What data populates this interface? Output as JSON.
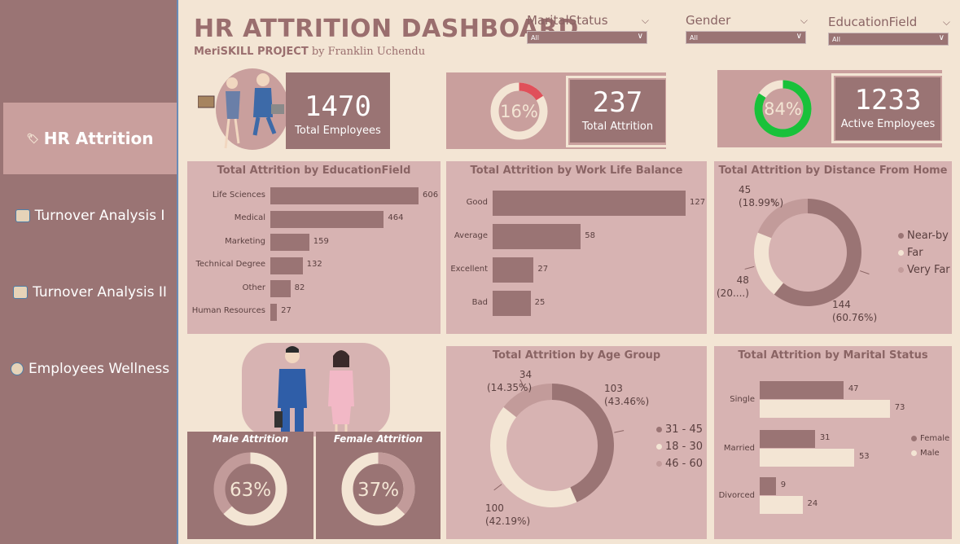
{
  "sidebar": {
    "items": [
      {
        "label": "HR Attrition",
        "icon": "tag-icon",
        "active": true
      },
      {
        "label": "Turnover Analysis I",
        "icon": "people-icon",
        "active": false
      },
      {
        "label": "Turnover Analysis II",
        "icon": "people-icon",
        "active": false
      },
      {
        "label": "Employees Wellness",
        "icon": "person-icon",
        "active": false
      }
    ]
  },
  "header": {
    "title": "HR ATTRITION DASHBOARD",
    "project": "MeriSKILL PROJECT",
    "author": "by Franklin Uchendu"
  },
  "filters": [
    {
      "label": "MaritalStatus",
      "value": "All"
    },
    {
      "label": "Gender",
      "value": "All"
    },
    {
      "label": "EducationField",
      "value": "All"
    }
  ],
  "kpis": {
    "total_employees": {
      "value": "1470",
      "label": "Total Employees"
    },
    "total_attrition": {
      "value": "237",
      "label": "Total Attrition",
      "pct": "16%",
      "fraction": 0.16
    },
    "active_employees": {
      "value": "1233",
      "label": "Active Employees",
      "pct": "84%",
      "fraction": 0.84
    }
  },
  "gender_attrition": {
    "male": {
      "label": "Male Attrition",
      "pct": "63%",
      "fraction": 0.63
    },
    "female": {
      "label": "Female Attrition",
      "pct": "37%",
      "fraction": 0.37
    }
  },
  "colors": {
    "primary": "#9a7474",
    "light": "#f3e5d4",
    "panel": "#d7b3b2",
    "accent_red": "#e0505a",
    "accent_green": "#19c13a",
    "mid": "#c29b9a"
  },
  "chart_data": [
    {
      "id": "education",
      "type": "bar",
      "title": "Total Attrition by EducationField",
      "orientation": "horizontal",
      "categories": [
        "Life Sciences",
        "Medical",
        "Marketing",
        "Technical Degree",
        "Other",
        "Human Resources"
      ],
      "values": [
        606,
        464,
        159,
        132,
        82,
        27
      ]
    },
    {
      "id": "worklife",
      "type": "bar",
      "title": "Total Attrition by Work Life Balance",
      "orientation": "horizontal",
      "categories": [
        "Good",
        "Average",
        "Excellent",
        "Bad"
      ],
      "values": [
        127,
        58,
        27,
        25
      ]
    },
    {
      "id": "distance",
      "type": "pie",
      "title": "Total Attrition by Distance From Home",
      "categories": [
        "Near-by",
        "Far",
        "Very Far"
      ],
      "values": [
        144,
        48,
        45
      ],
      "labels": [
        "144",
        "48",
        "45"
      ],
      "pct_labels": [
        "(60.76%)",
        "(20....)",
        "(18.99%)"
      ],
      "legend": "right"
    },
    {
      "id": "agegroup",
      "type": "pie",
      "title": "Total Attrition by Age Group",
      "categories": [
        "31 - 45",
        "18 - 30",
        "46 - 60"
      ],
      "values": [
        103,
        100,
        34
      ],
      "labels": [
        "103",
        "100",
        "34"
      ],
      "pct_labels": [
        "(43.46%)",
        "(42.19%)",
        "(14.35%)"
      ],
      "legend": "right"
    },
    {
      "id": "marital",
      "type": "bar",
      "title": "Total Attrition by Marital Status",
      "orientation": "horizontal",
      "categories": [
        "Single",
        "Married",
        "Divorced"
      ],
      "series": [
        {
          "name": "Female",
          "values": [
            47,
            31,
            9
          ]
        },
        {
          "name": "Male",
          "values": [
            73,
            53,
            24
          ]
        }
      ],
      "legend": "right"
    }
  ]
}
